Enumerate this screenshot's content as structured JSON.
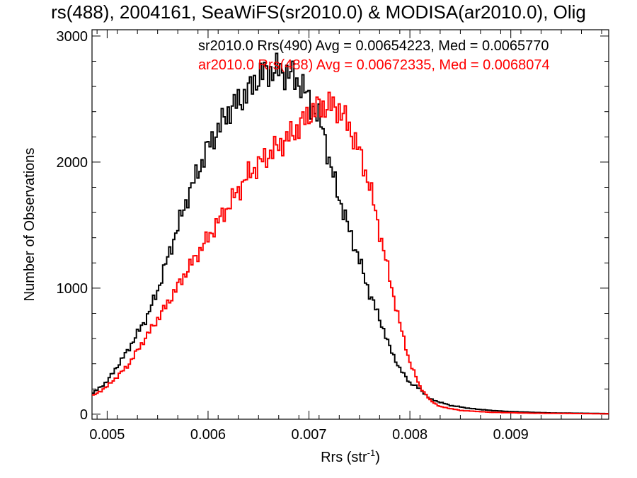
{
  "chart_data": {
    "type": "line",
    "title": "rs(488), 2004161, SeaWiFS(sr2010.0) & MODISA(ar2010.0), Olig",
    "xlabel": "Rrs (str",
    "xlabel_sup": "-1",
    "xlabel_close": ")",
    "ylabel": "Number of Observations",
    "xlim": [
      0.00485,
      0.00997
    ],
    "ylim": [
      -40,
      3050
    ],
    "x_ticks": [
      0.005,
      0.006,
      0.007,
      0.008,
      0.009
    ],
    "x_tick_labels": [
      "0.005",
      "0.006",
      "0.007",
      "0.008",
      "0.009"
    ],
    "y_ticks": [
      0,
      1000,
      2000,
      3000
    ],
    "y_tick_labels": [
      "0",
      "1000",
      "2000",
      "3000"
    ],
    "grid": false,
    "legend_position": "top-right",
    "series": [
      {
        "name": "sr2010.0 Rrs(490) Avg = 0.00654223, Med = 0.0065770",
        "color": "#000000",
        "points": [
          [
            0.00485,
            160
          ],
          [
            0.005,
            260
          ],
          [
            0.0052,
            500
          ],
          [
            0.0054,
            780
          ],
          [
            0.0055,
            980
          ],
          [
            0.0056,
            1240
          ],
          [
            0.0058,
            1730
          ],
          [
            0.006,
            2120
          ],
          [
            0.0062,
            2400
          ],
          [
            0.0064,
            2560
          ],
          [
            0.0065,
            2680
          ],
          [
            0.0066,
            2720
          ],
          [
            0.0067,
            2730
          ],
          [
            0.0068,
            2700
          ],
          [
            0.0069,
            2640
          ],
          [
            0.007,
            2500
          ],
          [
            0.00715,
            2250
          ],
          [
            0.0072,
            2000
          ],
          [
            0.00735,
            1580
          ],
          [
            0.0075,
            1220
          ],
          [
            0.0076,
            960
          ],
          [
            0.0077,
            760
          ],
          [
            0.0078,
            530
          ],
          [
            0.0079,
            360
          ],
          [
            0.008,
            250
          ],
          [
            0.0081,
            200
          ],
          [
            0.0082,
            120
          ],
          [
            0.0084,
            70
          ],
          [
            0.0086,
            45
          ],
          [
            0.0088,
            30
          ],
          [
            0.009,
            20
          ],
          [
            0.0094,
            10
          ],
          [
            0.00997,
            5
          ]
        ]
      },
      {
        "name": "ar2010.0 Rrs(488) Avg = 0.00672335, Med = 0.0068074",
        "color": "#ff0000",
        "points": [
          [
            0.00485,
            140
          ],
          [
            0.005,
            220
          ],
          [
            0.0052,
            380
          ],
          [
            0.0054,
            630
          ],
          [
            0.0056,
            880
          ],
          [
            0.0058,
            1150
          ],
          [
            0.006,
            1400
          ],
          [
            0.0062,
            1650
          ],
          [
            0.0064,
            1900
          ],
          [
            0.0066,
            2060
          ],
          [
            0.0068,
            2200
          ],
          [
            0.0069,
            2280
          ],
          [
            0.007,
            2380
          ],
          [
            0.0071,
            2440
          ],
          [
            0.0072,
            2450
          ],
          [
            0.0073,
            2420
          ],
          [
            0.0074,
            2280
          ],
          [
            0.0075,
            2080
          ],
          [
            0.0076,
            1820
          ],
          [
            0.0077,
            1450
          ],
          [
            0.0078,
            1080
          ],
          [
            0.0079,
            720
          ],
          [
            0.008,
            410
          ],
          [
            0.0081,
            220
          ],
          [
            0.0082,
            110
          ],
          [
            0.0083,
            60
          ],
          [
            0.0085,
            30
          ],
          [
            0.0088,
            15
          ],
          [
            0.0092,
            8
          ],
          [
            0.00997,
            3
          ]
        ]
      }
    ]
  }
}
